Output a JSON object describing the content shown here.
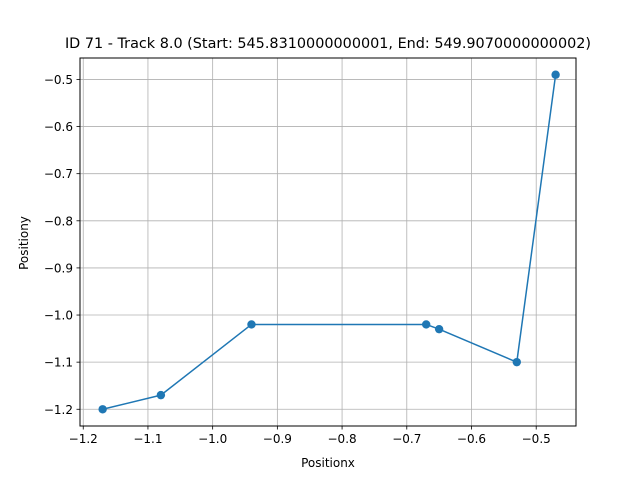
{
  "chart_data": {
    "type": "line",
    "title": "ID 71 - Track 8.0 (Start: 545.8310000000001, End: 549.9070000000002)",
    "xlabel": "Positionx",
    "ylabel": "Positiony",
    "xlim": [
      -1.205,
      -0.4385
    ],
    "ylim": [
      -1.2355,
      -0.4545
    ],
    "xticks": [
      -1.2,
      -1.1,
      -1.0,
      -0.9,
      -0.8,
      -0.7,
      -0.6,
      -0.5
    ],
    "xtick_labels": [
      "−1.2",
      "−1.1",
      "−1.0",
      "−0.9",
      "−0.8",
      "−0.7",
      "−0.6",
      "−0.5"
    ],
    "yticks": [
      -1.2,
      -1.1,
      -1.0,
      -0.9,
      -0.8,
      -0.7,
      -0.6,
      -0.5
    ],
    "ytick_labels": [
      "−1.2",
      "−1.1",
      "−1.0",
      "−0.9",
      "−0.8",
      "−0.7",
      "−0.6",
      "−0.5"
    ],
    "grid": true,
    "series": [
      {
        "color": "#1f77b4",
        "marker": "circle",
        "x": [
          -1.17,
          -1.08,
          -0.94,
          -0.67,
          -0.65,
          -0.53,
          -0.47
        ],
        "y": [
          -1.2,
          -1.17,
          -1.02,
          -1.02,
          -1.03,
          -1.1,
          -0.49
        ]
      }
    ]
  }
}
